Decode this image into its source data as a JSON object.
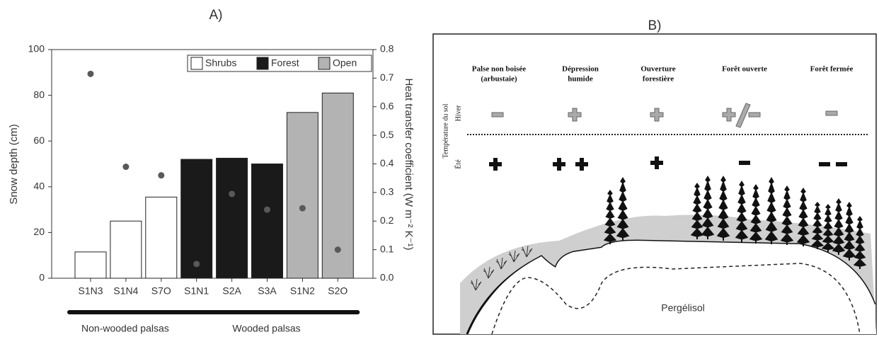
{
  "chart_data": {
    "type": "bar",
    "panel_label": "A)",
    "y_label": "Snow depth (cm)",
    "y2_label": "Heat transfer coefficient (W m⁻² K⁻¹)",
    "groups": [
      {
        "label": "Non-wooded palsas",
        "categories": [
          "S1N3",
          "S1N4",
          "S7O"
        ]
      },
      {
        "label": "Wooded palsas",
        "categories": [
          "S1N1",
          "S2A",
          "S3A",
          "S1N2",
          "S2O"
        ]
      }
    ],
    "values": [
      11.5,
      25,
      35.5,
      52,
      52.5,
      50,
      72.5,
      81
    ],
    "colors": [
      "#ffffff",
      "#ffffff",
      "#ffffff",
      "#1a1a1a",
      "#1a1a1a",
      "#1a1a1a",
      "#b3b3b3",
      "#b3b3b3"
    ],
    "y2_values": [
      0.715,
      0.39,
      0.36,
      0.05,
      0.295,
      0.24,
      0.245,
      0.1
    ],
    "y2_color": "#595959",
    "ylim": [
      0,
      100
    ],
    "yticks": [
      0,
      20,
      40,
      60,
      80,
      100
    ],
    "y2lim": [
      0,
      0.8
    ],
    "y2ticks": [
      {
        "value": 0,
        "label": "0.0"
      },
      0.1,
      0.2,
      0.3,
      0.4,
      0.5,
      0.6,
      0.7,
      0.8
    ],
    "legend": {
      "position": "upper right",
      "items": [
        {
          "label": "Shrubs",
          "color": "#ffffff"
        },
        {
          "label": "Forest",
          "color": "#1a1a1a"
        },
        {
          "label": "Open",
          "color": "#b3b3b3"
        }
      ]
    }
  },
  "diagram": {
    "panel_label": "B)",
    "columns": [
      "Palse non boisée",
      "(arbustaie)",
      "Dépression",
      "humide",
      "Ouverture",
      "forestière",
      "Forêt ouverte",
      "Forêt fermée"
    ],
    "row_title": "Température du sol",
    "rows": [
      "Hiver",
      "Été"
    ],
    "ground_label": "Pergélisol"
  }
}
